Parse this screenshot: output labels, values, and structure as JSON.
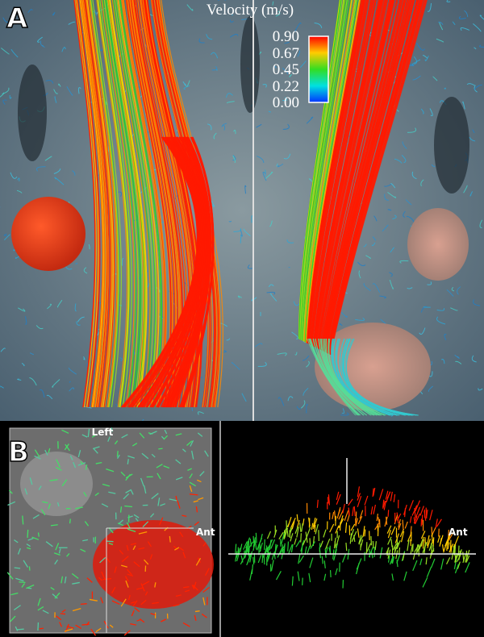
{
  "panel_a": {
    "label": "A",
    "colorbar": {
      "title": "Velocity (m/s)",
      "range": [
        0,
        0.9
      ],
      "ticks": [
        {
          "value": 0.9,
          "label": "0.90"
        },
        {
          "value": 0.67,
          "label": "0.67"
        },
        {
          "value": 0.45,
          "label": "0.45"
        },
        {
          "value": 0.22,
          "label": "0.22"
        },
        {
          "value": 0,
          "label": "0.00"
        }
      ]
    }
  },
  "panel_b": {
    "label": "B",
    "left_view": {
      "label_top": "Left",
      "label_right": "Ant"
    },
    "right_view": {
      "label_right": "Ant"
    }
  }
}
